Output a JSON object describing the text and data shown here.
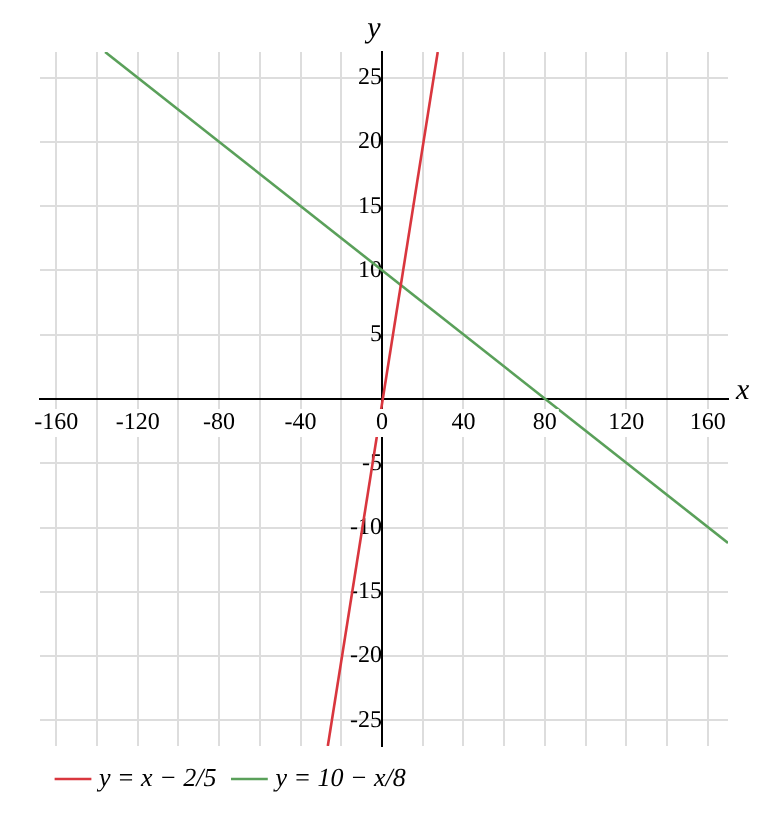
{
  "chart_data": {
    "type": "line",
    "xlabel": "x",
    "ylabel": "y",
    "xlim": [
      -168,
      170
    ],
    "ylim": [
      -27,
      27
    ],
    "xticks": [
      -160,
      {
        "value": -140,
        "label": null
      },
      -120,
      {
        "value": -100,
        "label": null
      },
      -80,
      {
        "value": -60,
        "label": null
      },
      -40,
      {
        "value": -20,
        "label": null
      },
      0,
      {
        "value": 20,
        "label": null
      },
      40,
      {
        "value": 60,
        "label": null
      },
      80,
      {
        "value": 100,
        "label": null
      },
      120,
      {
        "value": 140,
        "label": null
      },
      160
    ],
    "yticks": [
      -25,
      -20,
      -15,
      -10,
      -5,
      {
        "value": 0,
        "label": null
      },
      5,
      10,
      15,
      20,
      25
    ],
    "grid": true,
    "legend": "bottom",
    "line_style": "solid",
    "marker": "none",
    "series": [
      {
        "name": "y = x − 2/5",
        "color": "#d9363e",
        "x": [
          -26.6,
          27.4
        ],
        "values": [
          -27,
          27
        ]
      },
      {
        "name": "y = 10 − x/8",
        "color": "#5aa05a",
        "x": [
          -136,
          170
        ],
        "values": [
          27,
          -11.2
        ]
      }
    ]
  }
}
